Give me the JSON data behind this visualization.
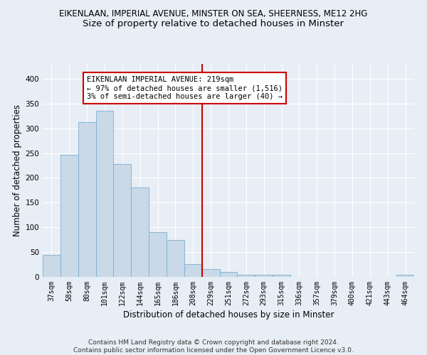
{
  "title1": "EIKENLAAN, IMPERIAL AVENUE, MINSTER ON SEA, SHEERNESS, ME12 2HG",
  "title2": "Size of property relative to detached houses in Minster",
  "xlabel": "Distribution of detached houses by size in Minster",
  "ylabel": "Number of detached properties",
  "categories": [
    "37sqm",
    "58sqm",
    "80sqm",
    "101sqm",
    "122sqm",
    "144sqm",
    "165sqm",
    "186sqm",
    "208sqm",
    "229sqm",
    "251sqm",
    "272sqm",
    "293sqm",
    "315sqm",
    "336sqm",
    "357sqm",
    "379sqm",
    "400sqm",
    "421sqm",
    "443sqm",
    "464sqm"
  ],
  "values": [
    44,
    246,
    312,
    335,
    228,
    180,
    91,
    75,
    26,
    16,
    10,
    5,
    5,
    4,
    0,
    0,
    0,
    0,
    0,
    0,
    4
  ],
  "bar_color": "#c9d9e8",
  "bar_edge_color": "#7aafcf",
  "vline_x_index": 8.5,
  "vline_color": "#cc0000",
  "annotation_line1": "EIKENLAAN IMPERIAL AVENUE: 219sqm",
  "annotation_line2": "← 97% of detached houses are smaller (1,516)",
  "annotation_line3": "3% of semi-detached houses are larger (40) →",
  "annotation_box_color": "#ffffff",
  "annotation_box_edge_color": "#cc0000",
  "ylim": [
    0,
    430
  ],
  "yticks": [
    0,
    50,
    100,
    150,
    200,
    250,
    300,
    350,
    400
  ],
  "background_color": "#e8eef5",
  "footnote": "Contains HM Land Registry data © Crown copyright and database right 2024.\nContains public sector information licensed under the Open Government Licence v3.0.",
  "title1_fontsize": 8.5,
  "title2_fontsize": 9.5,
  "xlabel_fontsize": 8.5,
  "ylabel_fontsize": 8.5,
  "annotation_fontsize": 7.5,
  "footnote_fontsize": 6.5,
  "tick_fontsize": 7
}
